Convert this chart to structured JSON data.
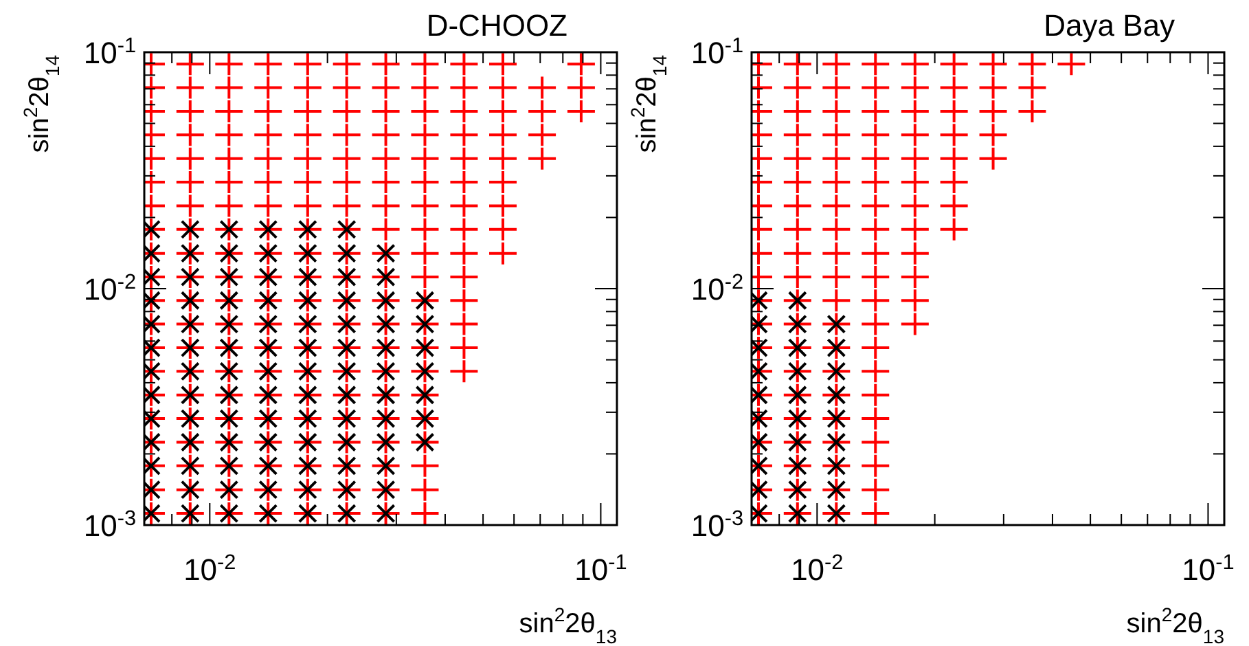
{
  "chart_data": [
    {
      "type": "scatter",
      "title": "D-CHOOZ",
      "xlabel": "sin$^{2}$2θ$_{13}$",
      "ylabel": "sin$^{2}$2θ$_{14}$",
      "log": "xy",
      "xlim": [
        0.0068,
        0.11
      ],
      "ylim": [
        0.001,
        0.1
      ],
      "xticks": [
        {
          "value": 0.008,
          "label": null
        },
        {
          "value": 0.009,
          "label": null
        },
        {
          "value": 0.01,
          "label": "10$^{-2}$"
        },
        {
          "value": 0.02,
          "label": null
        },
        {
          "value": 0.03,
          "label": null
        },
        {
          "value": 0.04,
          "label": null
        },
        {
          "value": 0.05,
          "label": null
        },
        {
          "value": 0.06,
          "label": null
        },
        {
          "value": 0.07,
          "label": null
        },
        {
          "value": 0.08,
          "label": null
        },
        {
          "value": 0.09,
          "label": null
        },
        {
          "value": 0.1,
          "label": "10$^{-1}$"
        }
      ],
      "yticks": [
        {
          "value": 0.001,
          "label": "10$^{-3}$"
        },
        {
          "value": 0.002,
          "label": null
        },
        {
          "value": 0.003,
          "label": null
        },
        {
          "value": 0.004,
          "label": null
        },
        {
          "value": 0.005,
          "label": null
        },
        {
          "value": 0.006,
          "label": null
        },
        {
          "value": 0.007,
          "label": null
        },
        {
          "value": 0.008,
          "label": null
        },
        {
          "value": 0.009,
          "label": null
        },
        {
          "value": 0.01,
          "label": "10$^{-2}$"
        },
        {
          "value": 0.02,
          "label": null
        },
        {
          "value": 0.03,
          "label": null
        },
        {
          "value": 0.04,
          "label": null
        },
        {
          "value": 0.05,
          "label": null
        },
        {
          "value": 0.06,
          "label": null
        },
        {
          "value": 0.07,
          "label": null
        },
        {
          "value": 0.08,
          "label": null
        },
        {
          "value": 0.09,
          "label": null
        },
        {
          "value": 0.1,
          "label": "10$^{-1}$"
        }
      ],
      "series": [
        {
          "color": "#ff0000",
          "marker": "cross",
          "x": [
            0.00708,
            0.00891,
            0.0112,
            0.0141,
            0.0178,
            0.0224,
            0.0282,
            0.0355,
            0.00708,
            0.00891,
            0.0112,
            0.0141,
            0.0178,
            0.0224,
            0.0282,
            0.0355,
            0.00708,
            0.00891,
            0.0112,
            0.0141,
            0.0178,
            0.0224,
            0.0282,
            0.0355,
            0.00708,
            0.00891,
            0.0112,
            0.0141,
            0.0178,
            0.0224,
            0.0282,
            0.0355,
            0.00708,
            0.00891,
            0.0112,
            0.0141,
            0.0178,
            0.0224,
            0.0282,
            0.0355,
            0.00708,
            0.00891,
            0.0112,
            0.0141,
            0.0178,
            0.0224,
            0.0282,
            0.0355,
            0.00708,
            0.00891,
            0.0112,
            0.0141,
            0.0178,
            0.0224,
            0.0282,
            0.0355,
            0.0447,
            0.00708,
            0.00891,
            0.0112,
            0.0141,
            0.0178,
            0.0224,
            0.0282,
            0.0355,
            0.0447,
            0.00708,
            0.00891,
            0.0112,
            0.0141,
            0.0178,
            0.0224,
            0.0282,
            0.0355,
            0.0447,
            0.00708,
            0.00891,
            0.0112,
            0.0141,
            0.0178,
            0.0224,
            0.0282,
            0.0355,
            0.0447,
            0.00708,
            0.00891,
            0.0112,
            0.0141,
            0.0178,
            0.0224,
            0.0282,
            0.0355,
            0.0447,
            0.00708,
            0.00891,
            0.0112,
            0.0141,
            0.0178,
            0.0224,
            0.0282,
            0.0355,
            0.0447,
            0.0562,
            0.00708,
            0.00891,
            0.0112,
            0.0141,
            0.0178,
            0.0224,
            0.0282,
            0.0355,
            0.0447,
            0.0562,
            0.00708,
            0.00891,
            0.0112,
            0.0141,
            0.0178,
            0.0224,
            0.0282,
            0.0355,
            0.0447,
            0.0562,
            0.00708,
            0.00891,
            0.0112,
            0.0141,
            0.0178,
            0.0224,
            0.0282,
            0.0355,
            0.0447,
            0.0562,
            0.00708,
            0.00891,
            0.0112,
            0.0141,
            0.0178,
            0.0224,
            0.0282,
            0.0355,
            0.0447,
            0.0562,
            0.0708,
            0.00708,
            0.00891,
            0.0112,
            0.0141,
            0.0178,
            0.0224,
            0.0282,
            0.0355,
            0.0447,
            0.0562,
            0.0708,
            0.00708,
            0.00891,
            0.0112,
            0.0141,
            0.0178,
            0.0224,
            0.0282,
            0.0355,
            0.0447,
            0.0562,
            0.0708,
            0.0891,
            0.00708,
            0.00891,
            0.0112,
            0.0141,
            0.0178,
            0.0224,
            0.0282,
            0.0355,
            0.0447,
            0.0562,
            0.0708,
            0.0891,
            0.00708,
            0.00891,
            0.0112,
            0.0141,
            0.0178,
            0.0224,
            0.0282,
            0.0355,
            0.0447,
            0.0562,
            0.0891
          ],
          "values": [
            0.00112,
            0.00112,
            0.00112,
            0.00112,
            0.00112,
            0.00112,
            0.00112,
            0.00112,
            0.00141,
            0.00141,
            0.00141,
            0.00141,
            0.00141,
            0.00141,
            0.00141,
            0.00141,
            0.00178,
            0.00178,
            0.00178,
            0.00178,
            0.00178,
            0.00178,
            0.00178,
            0.00178,
            0.00224,
            0.00224,
            0.00224,
            0.00224,
            0.00224,
            0.00224,
            0.00224,
            0.00224,
            0.00282,
            0.00282,
            0.00282,
            0.00282,
            0.00282,
            0.00282,
            0.00282,
            0.00282,
            0.00355,
            0.00355,
            0.00355,
            0.00355,
            0.00355,
            0.00355,
            0.00355,
            0.00355,
            0.00447,
            0.00447,
            0.00447,
            0.00447,
            0.00447,
            0.00447,
            0.00447,
            0.00447,
            0.00447,
            0.00562,
            0.00562,
            0.00562,
            0.00562,
            0.00562,
            0.00562,
            0.00562,
            0.00562,
            0.00562,
            0.00708,
            0.00708,
            0.00708,
            0.00708,
            0.00708,
            0.00708,
            0.00708,
            0.00708,
            0.00708,
            0.00891,
            0.00891,
            0.00891,
            0.00891,
            0.00891,
            0.00891,
            0.00891,
            0.00891,
            0.00891,
            0.0112,
            0.0112,
            0.0112,
            0.0112,
            0.0112,
            0.0112,
            0.0112,
            0.0112,
            0.0112,
            0.0141,
            0.0141,
            0.0141,
            0.0141,
            0.0141,
            0.0141,
            0.0141,
            0.0141,
            0.0141,
            0.0141,
            0.0178,
            0.0178,
            0.0178,
            0.0178,
            0.0178,
            0.0178,
            0.0178,
            0.0178,
            0.0178,
            0.0178,
            0.0224,
            0.0224,
            0.0224,
            0.0224,
            0.0224,
            0.0224,
            0.0224,
            0.0224,
            0.0224,
            0.0224,
            0.0282,
            0.0282,
            0.0282,
            0.0282,
            0.0282,
            0.0282,
            0.0282,
            0.0282,
            0.0282,
            0.0282,
            0.0355,
            0.0355,
            0.0355,
            0.0355,
            0.0355,
            0.0355,
            0.0355,
            0.0355,
            0.0355,
            0.0355,
            0.0355,
            0.0447,
            0.0447,
            0.0447,
            0.0447,
            0.0447,
            0.0447,
            0.0447,
            0.0447,
            0.0447,
            0.0447,
            0.0447,
            0.0562,
            0.0562,
            0.0562,
            0.0562,
            0.0562,
            0.0562,
            0.0562,
            0.0562,
            0.0562,
            0.0562,
            0.0562,
            0.0562,
            0.0708,
            0.0708,
            0.0708,
            0.0708,
            0.0708,
            0.0708,
            0.0708,
            0.0708,
            0.0708,
            0.0708,
            0.0708,
            0.0708,
            0.0891,
            0.0891,
            0.0891,
            0.0891,
            0.0891,
            0.0891,
            0.0891,
            0.0891,
            0.0891,
            0.0891,
            0.0891
          ]
        },
        {
          "color": "#000000",
          "marker": "x",
          "x": [
            0.00708,
            0.00891,
            0.0112,
            0.0141,
            0.0178,
            0.0224,
            0.0282,
            0.00708,
            0.00891,
            0.0112,
            0.0141,
            0.0178,
            0.0224,
            0.0282,
            0.00708,
            0.00891,
            0.0112,
            0.0141,
            0.0178,
            0.0224,
            0.0282,
            0.00708,
            0.00891,
            0.0112,
            0.0141,
            0.0178,
            0.0224,
            0.0282,
            0.0355,
            0.00708,
            0.00891,
            0.0112,
            0.0141,
            0.0178,
            0.0224,
            0.0282,
            0.0355,
            0.00708,
            0.00891,
            0.0112,
            0.0141,
            0.0178,
            0.0224,
            0.0282,
            0.0355,
            0.00708,
            0.00891,
            0.0112,
            0.0141,
            0.0178,
            0.0224,
            0.0282,
            0.0355,
            0.00708,
            0.00891,
            0.0112,
            0.0141,
            0.0178,
            0.0224,
            0.0282,
            0.0355,
            0.00708,
            0.00891,
            0.0112,
            0.0141,
            0.0178,
            0.0224,
            0.0282,
            0.0355,
            0.00708,
            0.00891,
            0.0112,
            0.0141,
            0.0178,
            0.0224,
            0.0282,
            0.0355,
            0.00708,
            0.00891,
            0.0112,
            0.0141,
            0.0178,
            0.0224,
            0.0282,
            0.00708,
            0.00891,
            0.0112,
            0.0141,
            0.0178,
            0.0224,
            0.0282,
            0.00708,
            0.00891,
            0.0112,
            0.0141,
            0.0178,
            0.0224
          ],
          "values": [
            0.00112,
            0.00112,
            0.00112,
            0.00112,
            0.00112,
            0.00112,
            0.00112,
            0.00141,
            0.00141,
            0.00141,
            0.00141,
            0.00141,
            0.00141,
            0.00141,
            0.00178,
            0.00178,
            0.00178,
            0.00178,
            0.00178,
            0.00178,
            0.00178,
            0.00224,
            0.00224,
            0.00224,
            0.00224,
            0.00224,
            0.00224,
            0.00224,
            0.00224,
            0.00282,
            0.00282,
            0.00282,
            0.00282,
            0.00282,
            0.00282,
            0.00282,
            0.00282,
            0.00355,
            0.00355,
            0.00355,
            0.00355,
            0.00355,
            0.00355,
            0.00355,
            0.00355,
            0.00447,
            0.00447,
            0.00447,
            0.00447,
            0.00447,
            0.00447,
            0.00447,
            0.00447,
            0.00562,
            0.00562,
            0.00562,
            0.00562,
            0.00562,
            0.00562,
            0.00562,
            0.00562,
            0.00708,
            0.00708,
            0.00708,
            0.00708,
            0.00708,
            0.00708,
            0.00708,
            0.00708,
            0.00891,
            0.00891,
            0.00891,
            0.00891,
            0.00891,
            0.00891,
            0.00891,
            0.00891,
            0.0112,
            0.0112,
            0.0112,
            0.0112,
            0.0112,
            0.0112,
            0.0112,
            0.0141,
            0.0141,
            0.0141,
            0.0141,
            0.0141,
            0.0141,
            0.0141,
            0.0178,
            0.0178,
            0.0178,
            0.0178,
            0.0178,
            0.0178
          ]
        }
      ]
    },
    {
      "type": "scatter",
      "title": "Daya Bay",
      "xlabel": "sin$^{2}$2θ$_{13}$",
      "ylabel": "sin$^{2}$2θ$_{14}$",
      "log": "xy",
      "xlim": [
        0.0068,
        0.11
      ],
      "ylim": [
        0.001,
        0.1
      ],
      "xticks": [
        {
          "value": 0.008,
          "label": null
        },
        {
          "value": 0.009,
          "label": null
        },
        {
          "value": 0.01,
          "label": "10$^{-2}$"
        },
        {
          "value": 0.02,
          "label": null
        },
        {
          "value": 0.03,
          "label": null
        },
        {
          "value": 0.04,
          "label": null
        },
        {
          "value": 0.05,
          "label": null
        },
        {
          "value": 0.06,
          "label": null
        },
        {
          "value": 0.07,
          "label": null
        },
        {
          "value": 0.08,
          "label": null
        },
        {
          "value": 0.09,
          "label": null
        },
        {
          "value": 0.1,
          "label": "10$^{-1}$"
        }
      ],
      "yticks": [
        {
          "value": 0.001,
          "label": "10$^{-3}$"
        },
        {
          "value": 0.002,
          "label": null
        },
        {
          "value": 0.003,
          "label": null
        },
        {
          "value": 0.004,
          "label": null
        },
        {
          "value": 0.005,
          "label": null
        },
        {
          "value": 0.006,
          "label": null
        },
        {
          "value": 0.007,
          "label": null
        },
        {
          "value": 0.008,
          "label": null
        },
        {
          "value": 0.009,
          "label": null
        },
        {
          "value": 0.01,
          "label": "10$^{-2}$"
        },
        {
          "value": 0.02,
          "label": null
        },
        {
          "value": 0.03,
          "label": null
        },
        {
          "value": 0.04,
          "label": null
        },
        {
          "value": 0.05,
          "label": null
        },
        {
          "value": 0.06,
          "label": null
        },
        {
          "value": 0.07,
          "label": null
        },
        {
          "value": 0.08,
          "label": null
        },
        {
          "value": 0.09,
          "label": null
        },
        {
          "value": 0.1,
          "label": "10$^{-1}$"
        }
      ],
      "series": [
        {
          "color": "#ff0000",
          "marker": "cross",
          "x": [
            0.00708,
            0.00891,
            0.0112,
            0.0141,
            0.00708,
            0.00891,
            0.0112,
            0.0141,
            0.00708,
            0.00891,
            0.0112,
            0.0141,
            0.00708,
            0.00891,
            0.0112,
            0.0141,
            0.00708,
            0.00891,
            0.0112,
            0.0141,
            0.00708,
            0.00891,
            0.0112,
            0.0141,
            0.00708,
            0.00891,
            0.0112,
            0.0141,
            0.00708,
            0.00891,
            0.0112,
            0.0141,
            0.00708,
            0.00891,
            0.0112,
            0.0141,
            0.0178,
            0.00708,
            0.00891,
            0.0112,
            0.0141,
            0.0178,
            0.00708,
            0.00891,
            0.0112,
            0.0141,
            0.0178,
            0.00708,
            0.00891,
            0.0112,
            0.0141,
            0.0178,
            0.00708,
            0.00891,
            0.0112,
            0.0141,
            0.0178,
            0.0224,
            0.00708,
            0.00891,
            0.0112,
            0.0141,
            0.0178,
            0.0224,
            0.00708,
            0.00891,
            0.0112,
            0.0141,
            0.0178,
            0.0224,
            0.00708,
            0.00891,
            0.0112,
            0.0141,
            0.0178,
            0.0224,
            0.0282,
            0.00708,
            0.00891,
            0.0112,
            0.0141,
            0.0178,
            0.0224,
            0.0282,
            0.00708,
            0.00891,
            0.0112,
            0.0141,
            0.0178,
            0.0224,
            0.0282,
            0.0355,
            0.00708,
            0.00891,
            0.0112,
            0.0141,
            0.0178,
            0.0224,
            0.0282,
            0.0355,
            0.00708,
            0.00891,
            0.0112,
            0.0141,
            0.0178,
            0.0224,
            0.0282,
            0.0355,
            0.0447
          ],
          "values": [
            0.00112,
            0.00112,
            0.00112,
            0.00112,
            0.00141,
            0.00141,
            0.00141,
            0.00141,
            0.00178,
            0.00178,
            0.00178,
            0.00178,
            0.00224,
            0.00224,
            0.00224,
            0.00224,
            0.00282,
            0.00282,
            0.00282,
            0.00282,
            0.00355,
            0.00355,
            0.00355,
            0.00355,
            0.00447,
            0.00447,
            0.00447,
            0.00447,
            0.00562,
            0.00562,
            0.00562,
            0.00562,
            0.00708,
            0.00708,
            0.00708,
            0.00708,
            0.00708,
            0.00891,
            0.00891,
            0.00891,
            0.00891,
            0.00891,
            0.0112,
            0.0112,
            0.0112,
            0.0112,
            0.0112,
            0.0141,
            0.0141,
            0.0141,
            0.0141,
            0.0141,
            0.0178,
            0.0178,
            0.0178,
            0.0178,
            0.0178,
            0.0178,
            0.0224,
            0.0224,
            0.0224,
            0.0224,
            0.0224,
            0.0224,
            0.0282,
            0.0282,
            0.0282,
            0.0282,
            0.0282,
            0.0282,
            0.0355,
            0.0355,
            0.0355,
            0.0355,
            0.0355,
            0.0355,
            0.0355,
            0.0447,
            0.0447,
            0.0447,
            0.0447,
            0.0447,
            0.0447,
            0.0447,
            0.0562,
            0.0562,
            0.0562,
            0.0562,
            0.0562,
            0.0562,
            0.0562,
            0.0562,
            0.0708,
            0.0708,
            0.0708,
            0.0708,
            0.0708,
            0.0708,
            0.0708,
            0.0708,
            0.0891,
            0.0891,
            0.0891,
            0.0891,
            0.0891,
            0.0891,
            0.0891,
            0.0891,
            0.0891
          ]
        },
        {
          "color": "#000000",
          "marker": "x",
          "x": [
            0.00708,
            0.00891,
            0.0112,
            0.00708,
            0.00891,
            0.0112,
            0.00708,
            0.00891,
            0.0112,
            0.00708,
            0.00891,
            0.0112,
            0.00708,
            0.00891,
            0.0112,
            0.00708,
            0.00891,
            0.0112,
            0.00708,
            0.00891,
            0.0112,
            0.00708,
            0.00891,
            0.0112,
            0.00708,
            0.00891,
            0.0112,
            0.00708,
            0.00891
          ],
          "values": [
            0.00112,
            0.00112,
            0.00112,
            0.00141,
            0.00141,
            0.00141,
            0.00178,
            0.00178,
            0.00178,
            0.00224,
            0.00224,
            0.00224,
            0.00282,
            0.00282,
            0.00282,
            0.00355,
            0.00355,
            0.00355,
            0.00447,
            0.00447,
            0.00447,
            0.00562,
            0.00562,
            0.00562,
            0.00708,
            0.00708,
            0.00708,
            0.00891,
            0.00891
          ]
        }
      ]
    }
  ]
}
